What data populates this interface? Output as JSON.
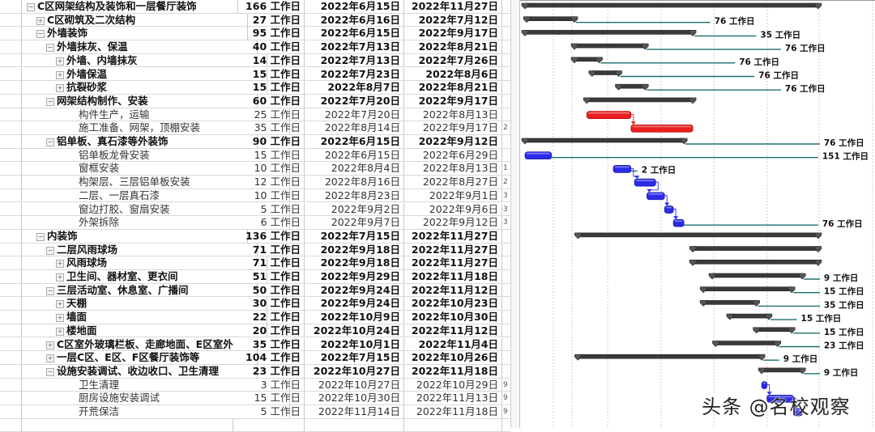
{
  "unit": "工作日",
  "timeline": {
    "start": "2022-06-15",
    "end": "2022-11-27"
  },
  "colors": {
    "summary": "#3a3a3a",
    "critical": "#e82020",
    "task": "#2a2ae8",
    "slack": "#1e6f6f"
  },
  "rows": [
    {
      "level": 0,
      "toggle": "minus",
      "name": "C区网架结构及装饰和一层餐厅装饰",
      "duration": "166",
      "start": "2022年6月15日",
      "end": "2022年11月27日",
      "pred": "",
      "bold": true,
      "type": "summary",
      "s": "2022-06-15",
      "e": "2022-11-27",
      "slack": ""
    },
    {
      "level": 1,
      "toggle": "plus",
      "name": "C区砌筑及二次结构",
      "duration": "27",
      "start": "2022年6月16日",
      "end": "2022年7月12日",
      "pred": "",
      "bold": true,
      "type": "summary",
      "s": "2022-06-16",
      "e": "2022-07-12",
      "slack": "76"
    },
    {
      "level": 1,
      "toggle": "minus",
      "name": "外墙装饰",
      "duration": "95",
      "start": "2022年6月15日",
      "end": "2022年9月17日",
      "pred": "",
      "bold": true,
      "type": "summary",
      "s": "2022-06-15",
      "e": "2022-09-17",
      "slack": "35"
    },
    {
      "level": 2,
      "toggle": "minus",
      "name": "外墙抹灰、保温",
      "duration": "40",
      "start": "2022年7月13日",
      "end": "2022年8月21日",
      "pred": "",
      "bold": true,
      "type": "summary",
      "s": "2022-07-13",
      "e": "2022-08-21",
      "slack": "76"
    },
    {
      "level": 3,
      "toggle": "plus",
      "name": "外墙、内墙抹灰",
      "duration": "14",
      "start": "2022年7月13日",
      "end": "2022年7月26日",
      "pred": "",
      "bold": true,
      "type": "summary",
      "s": "2022-07-13",
      "e": "2022-07-26",
      "slack": "76"
    },
    {
      "level": 3,
      "toggle": "plus",
      "name": "外墙保温",
      "duration": "15",
      "start": "2022年7月23日",
      "end": "2022年8月6日",
      "pred": "",
      "bold": true,
      "type": "summary",
      "s": "2022-07-23",
      "e": "2022-08-06",
      "slack": "76"
    },
    {
      "level": 3,
      "toggle": "plus",
      "name": "抗裂砂浆",
      "duration": "15",
      "start": "2022年8月7日",
      "end": "2022年8月21日",
      "pred": "",
      "bold": true,
      "type": "summary",
      "s": "2022-08-07",
      "e": "2022-08-21",
      "slack": "76"
    },
    {
      "level": 2,
      "toggle": "minus",
      "name": "网架结构制作、安装",
      "duration": "60",
      "start": "2022年7月20日",
      "end": "2022年9月17日",
      "pred": "",
      "bold": true,
      "type": "summary",
      "s": "2022-07-20",
      "e": "2022-09-17",
      "slack": ""
    },
    {
      "level": 4,
      "toggle": "",
      "name": "构件生产，运输",
      "duration": "25",
      "start": "2022年7月20日",
      "end": "2022年8月13日",
      "pred": "",
      "bold": false,
      "type": "critical",
      "s": "2022-07-20",
      "e": "2022-08-13",
      "slack": ""
    },
    {
      "level": 4,
      "toggle": "",
      "name": "施工准备、网架，顶棚安装",
      "duration": "35",
      "start": "2022年8月14日",
      "end": "2022年9月17日",
      "pred": "2",
      "bold": false,
      "type": "critical",
      "s": "2022-08-14",
      "e": "2022-09-17",
      "slack": ""
    },
    {
      "level": 2,
      "toggle": "minus",
      "name": "铝单板、真石漆等外装饰",
      "duration": "90",
      "start": "2022年6月15日",
      "end": "2022年9月12日",
      "pred": "",
      "bold": true,
      "type": "summary",
      "s": "2022-06-15",
      "e": "2022-09-12",
      "slack": "76"
    },
    {
      "level": 4,
      "toggle": "",
      "name": "铝单板龙骨安装",
      "duration": "15",
      "start": "2022年6月15日",
      "end": "2022年6月29日",
      "pred": "",
      "bold": false,
      "type": "task",
      "s": "2022-06-15",
      "e": "2022-06-29",
      "slack": "151"
    },
    {
      "level": 4,
      "toggle": "",
      "name": "窗框安装",
      "duration": "10",
      "start": "2022年8月4日",
      "end": "2022年8月13日",
      "pred": "1",
      "bold": false,
      "type": "task",
      "s": "2022-08-04",
      "e": "2022-08-13",
      "slack": "2"
    },
    {
      "level": 4,
      "toggle": "",
      "name": "构架层、三层铝单板安装",
      "duration": "12",
      "start": "2022年8月16日",
      "end": "2022年8月27日",
      "pred": "2",
      "bold": false,
      "type": "task",
      "s": "2022-08-16",
      "e": "2022-08-27",
      "slack": ""
    },
    {
      "level": 4,
      "toggle": "",
      "name": "二层、一层真石漆",
      "duration": "10",
      "start": "2022年8月23日",
      "end": "2022年9月1日",
      "pred": "3",
      "bold": false,
      "type": "task",
      "s": "2022-08-23",
      "e": "2022-09-01",
      "slack": ""
    },
    {
      "level": 4,
      "toggle": "",
      "name": "窗边打胶、窗扇安装",
      "duration": "5",
      "start": "2022年9月2日",
      "end": "2022年9月6日",
      "pred": "3",
      "bold": false,
      "type": "task",
      "s": "2022-09-02",
      "e": "2022-09-06",
      "slack": ""
    },
    {
      "level": 4,
      "toggle": "",
      "name": "外架拆除",
      "duration": "6",
      "start": "2022年9月7日",
      "end": "2022年9月12日",
      "pred": "3",
      "bold": false,
      "type": "task",
      "s": "2022-09-07",
      "e": "2022-09-12",
      "slack": "76"
    },
    {
      "level": 1,
      "toggle": "minus",
      "name": "内装饰",
      "duration": "136",
      "start": "2022年7月15日",
      "end": "2022年11月27日",
      "pred": "",
      "bold": true,
      "type": "summary",
      "s": "2022-07-15",
      "e": "2022-11-27",
      "slack": ""
    },
    {
      "level": 2,
      "toggle": "minus",
      "name": "二层风雨球场",
      "duration": "71",
      "start": "2022年9月18日",
      "end": "2022年11月27日",
      "pred": "",
      "bold": true,
      "type": "summary",
      "s": "2022-09-18",
      "e": "2022-11-27",
      "slack": ""
    },
    {
      "level": 3,
      "toggle": "plus",
      "name": "风雨球场",
      "duration": "71",
      "start": "2022年9月18日",
      "end": "2022年11月27日",
      "pred": "",
      "bold": true,
      "type": "summary",
      "s": "2022-09-18",
      "e": "2022-11-27",
      "slack": ""
    },
    {
      "level": 3,
      "toggle": "plus",
      "name": "卫生间、器材室、更衣间",
      "duration": "51",
      "start": "2022年9月29日",
      "end": "2022年11月18日",
      "pred": "",
      "bold": true,
      "type": "summary",
      "s": "2022-09-29",
      "e": "2022-11-18",
      "slack": "9"
    },
    {
      "level": 2,
      "toggle": "minus",
      "name": "三层活动室、休息室、广播间",
      "duration": "50",
      "start": "2022年9月24日",
      "end": "2022年11月12日",
      "pred": "",
      "bold": true,
      "type": "summary",
      "s": "2022-09-24",
      "e": "2022-11-12",
      "slack": "15"
    },
    {
      "level": 3,
      "toggle": "plus",
      "name": "天棚",
      "duration": "30",
      "start": "2022年9月24日",
      "end": "2022年10月23日",
      "pred": "",
      "bold": true,
      "type": "summary",
      "s": "2022-09-24",
      "e": "2022-10-23",
      "slack": "35"
    },
    {
      "level": 3,
      "toggle": "plus",
      "name": "墙面",
      "duration": "22",
      "start": "2022年10月9日",
      "end": "2022年10月30日",
      "pred": "",
      "bold": true,
      "type": "summary",
      "s": "2022-10-09",
      "e": "2022-10-30",
      "slack": "15"
    },
    {
      "level": 3,
      "toggle": "plus",
      "name": "楼地面",
      "duration": "20",
      "start": "2022年10月24日",
      "end": "2022年11月12日",
      "pred": "",
      "bold": true,
      "type": "summary",
      "s": "2022-10-24",
      "e": "2022-11-12",
      "slack": "15"
    },
    {
      "level": 2,
      "toggle": "plus",
      "name": "C区室外玻璃栏板、走廊地面、E区室外",
      "duration": "35",
      "start": "2022年10月1日",
      "end": "2022年11月4日",
      "pred": "",
      "bold": true,
      "type": "summary",
      "s": "2022-10-01",
      "e": "2022-11-04",
      "slack": "23"
    },
    {
      "level": 2,
      "toggle": "plus",
      "name": "一层C区、E区、F区餐厅装饰等",
      "duration": "104",
      "start": "2022年7月15日",
      "end": "2022年10月26日",
      "pred": "",
      "bold": true,
      "type": "summary",
      "s": "2022-07-15",
      "e": "2022-10-26",
      "slack": "9"
    },
    {
      "level": 2,
      "toggle": "minus",
      "name": "设施安装调试、收边收口、卫生清理",
      "duration": "23",
      "start": "2022年10月27日",
      "end": "2022年11月18日",
      "pred": "",
      "bold": true,
      "type": "summary",
      "s": "2022-10-27",
      "e": "2022-11-18",
      "slack": "9"
    },
    {
      "level": 4,
      "toggle": "",
      "name": "卫生清理",
      "duration": "3",
      "start": "2022年10月27日",
      "end": "2022年10月29日",
      "pred": "9",
      "bold": false,
      "type": "task",
      "s": "2022-10-27",
      "e": "2022-10-29",
      "slack": ""
    },
    {
      "level": 4,
      "toggle": "",
      "name": "厨房设施安装调试",
      "duration": "15",
      "start": "2022年10月30日",
      "end": "2022年11月13日",
      "pred": "9",
      "bold": false,
      "type": "task",
      "s": "2022-10-30",
      "e": "2022-11-13",
      "slack": ""
    },
    {
      "level": 4,
      "toggle": "",
      "name": "开荒保洁",
      "duration": "5",
      "start": "2022年11月14日",
      "end": "2022年11月18日",
      "pred": "9",
      "bold": false,
      "type": "task",
      "s": "2022-11-14",
      "e": "2022-11-18",
      "slack": ""
    }
  ],
  "watermark": "头条 @名校观察"
}
